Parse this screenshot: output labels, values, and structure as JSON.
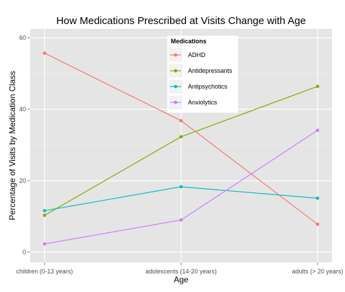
{
  "chart_data": {
    "type": "line",
    "title": "How Medications Prescribed at Visits Change with Age",
    "xlabel": "Age",
    "ylabel": "Percentage of Visits by Medication Class",
    "categories": [
      "children (0-13 years)",
      "adolescents (14-20 years)",
      "adults (> 20 years)"
    ],
    "ylim": [
      0,
      60
    ],
    "yticks": [
      0,
      20,
      40,
      60
    ],
    "grid": true,
    "legend_title": "Medications",
    "legend_position": "top-center",
    "series": [
      {
        "name": "ADHD",
        "color": "#F8766D",
        "values": [
          55.7,
          36.8,
          7.8
        ]
      },
      {
        "name": "Antidepressants",
        "color": "#7CAE00",
        "values": [
          10.3,
          32.3,
          46.4
        ]
      },
      {
        "name": "Antipsychotics",
        "color": "#00BFC4",
        "values": [
          11.6,
          18.3,
          15.1
        ]
      },
      {
        "name": "Anxiolytics",
        "color": "#C77CFF",
        "values": [
          2.3,
          9.0,
          34.1
        ]
      }
    ]
  }
}
